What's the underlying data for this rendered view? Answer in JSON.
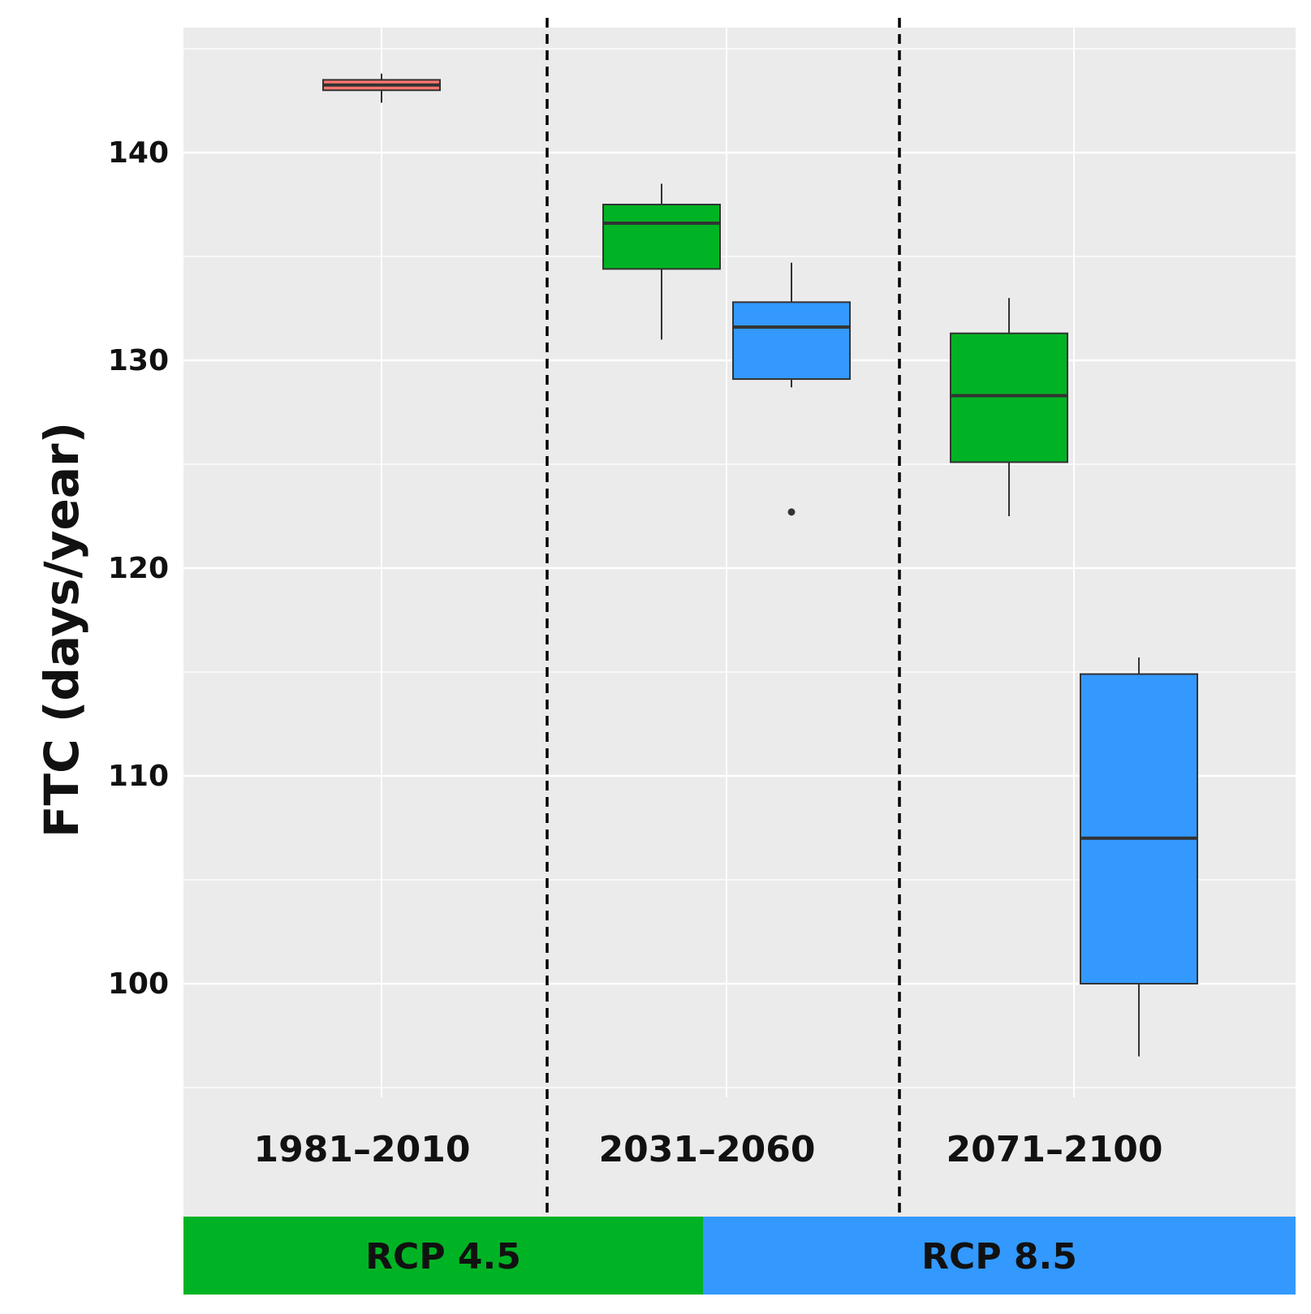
{
  "chart_data": {
    "type": "box",
    "ylabel": "FTC (days/year)",
    "xlabel": "",
    "ylim": [
      94.9,
      145.2
    ],
    "yticks": [
      100,
      110,
      120,
      130,
      140
    ],
    "y_minor_ticks": [
      95,
      105,
      115,
      125,
      135,
      145
    ],
    "grid": true,
    "categories": [
      "1981–2010",
      "2031–2060",
      "2071–2100"
    ],
    "scenario_bands": [
      {
        "label": "RCP 4.5",
        "color": "#00b324"
      },
      {
        "label": "RCP 8.5",
        "color": "#3399ff"
      }
    ],
    "series": [
      {
        "color": "#f8766d",
        "boxes": [
          {
            "category": "1981–2010",
            "whisker_low": 142.4,
            "q1": 143.0,
            "median": 143.25,
            "q3": 143.5,
            "whisker_high": 143.8,
            "outliers": []
          }
        ]
      },
      {
        "color": "#00b324",
        "boxes": [
          {
            "category": "2031–2060",
            "whisker_low": 131.0,
            "q1": 134.4,
            "median": 136.6,
            "q3": 137.5,
            "whisker_high": 138.5,
            "outliers": []
          },
          {
            "category": "2071–2100",
            "whisker_low": 122.5,
            "q1": 125.1,
            "median": 128.3,
            "q3": 131.3,
            "whisker_high": 133.0,
            "outliers": []
          }
        ]
      },
      {
        "color": "#3399ff",
        "boxes": [
          {
            "category": "2031–2060",
            "whisker_low": 128.7,
            "q1": 129.1,
            "median": 131.6,
            "q3": 132.8,
            "whisker_high": 134.7,
            "outliers": [
              122.7
            ]
          },
          {
            "category": "2071–2100",
            "whisker_low": 96.5,
            "q1": 100.0,
            "median": 107.0,
            "q3": 114.9,
            "whisker_high": 115.7,
            "outliers": []
          }
        ]
      }
    ]
  },
  "colors": {
    "panel_bg": "#ebebeb",
    "grid_major": "#ffffff",
    "box_stroke": "#333333"
  }
}
